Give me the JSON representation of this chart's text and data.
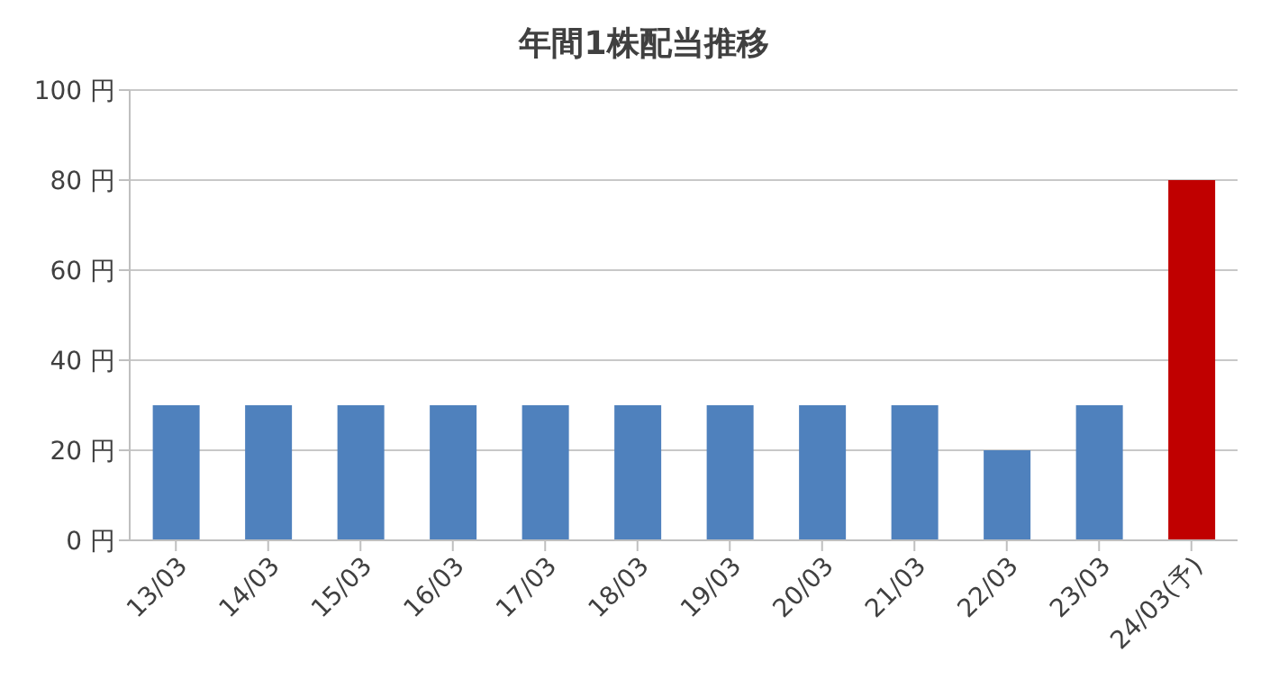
{
  "chart_data": {
    "type": "bar",
    "title": "年間1株配当推移",
    "categories": [
      "13/03",
      "14/03",
      "15/03",
      "16/03",
      "17/03",
      "18/03",
      "19/03",
      "20/03",
      "21/03",
      "22/03",
      "23/03",
      "24/03(予)"
    ],
    "values": [
      30,
      30,
      30,
      30,
      30,
      30,
      30,
      30,
      30,
      20,
      30,
      80
    ],
    "colors": [
      "#4f81bd",
      "#4f81bd",
      "#4f81bd",
      "#4f81bd",
      "#4f81bd",
      "#4f81bd",
      "#4f81bd",
      "#4f81bd",
      "#4f81bd",
      "#4f81bd",
      "#4f81bd",
      "#c00000"
    ],
    "ylim": [
      0,
      100
    ],
    "yticks": [
      {
        "value": 0,
        "label": "0 円"
      },
      {
        "value": 20,
        "label": "20 円"
      },
      {
        "value": 40,
        "label": "40 円"
      },
      {
        "value": 60,
        "label": "60 円"
      },
      {
        "value": 80,
        "label": "80 円"
      },
      {
        "value": 100,
        "label": "100 円"
      }
    ],
    "grid": "y"
  }
}
